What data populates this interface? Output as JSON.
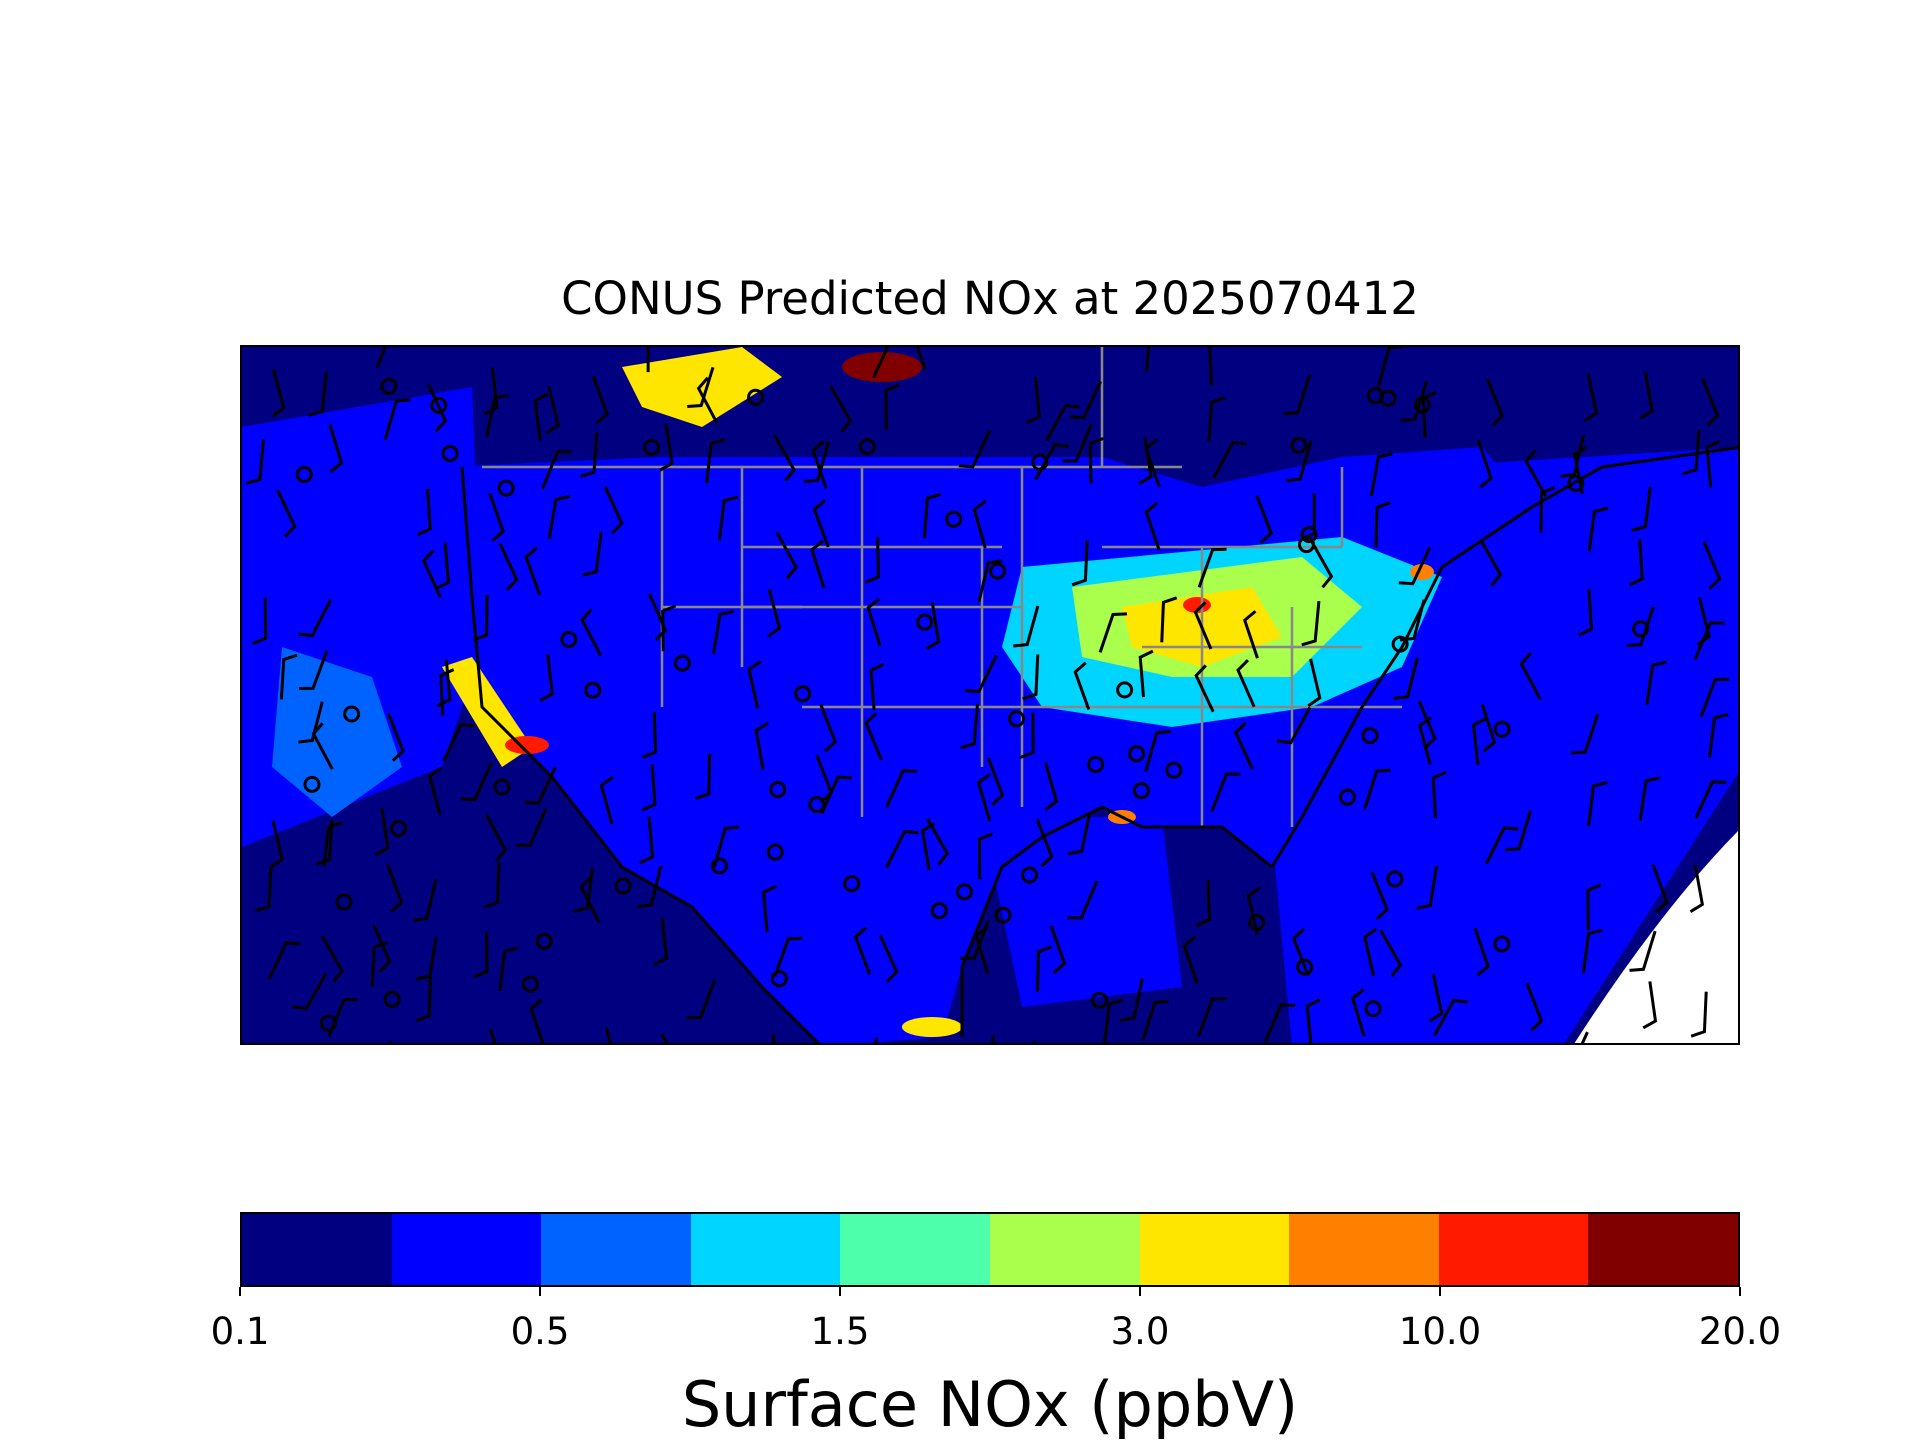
{
  "title": "CONUS Predicted NOx at 2025070412",
  "colorbar": {
    "label": "Surface NOx (ppbV)",
    "colors": [
      "#000080",
      "#0000ff",
      "#0063ff",
      "#00d5ff",
      "#4dffaa",
      "#aaff4d",
      "#ffe600",
      "#ff7f00",
      "#ff1a00",
      "#800000"
    ],
    "ticks": [
      "0.1",
      "0.5",
      "1.5",
      "3.0",
      "10.0",
      "20.0"
    ],
    "tick_positions": [
      0,
      2,
      4,
      6,
      8,
      10
    ]
  },
  "map": {
    "domain": "CONUS",
    "variable": "NOx",
    "units": "ppbV",
    "overlays": [
      "wind-barbs",
      "station-markers",
      "state-boundaries",
      "coastlines"
    ]
  }
}
